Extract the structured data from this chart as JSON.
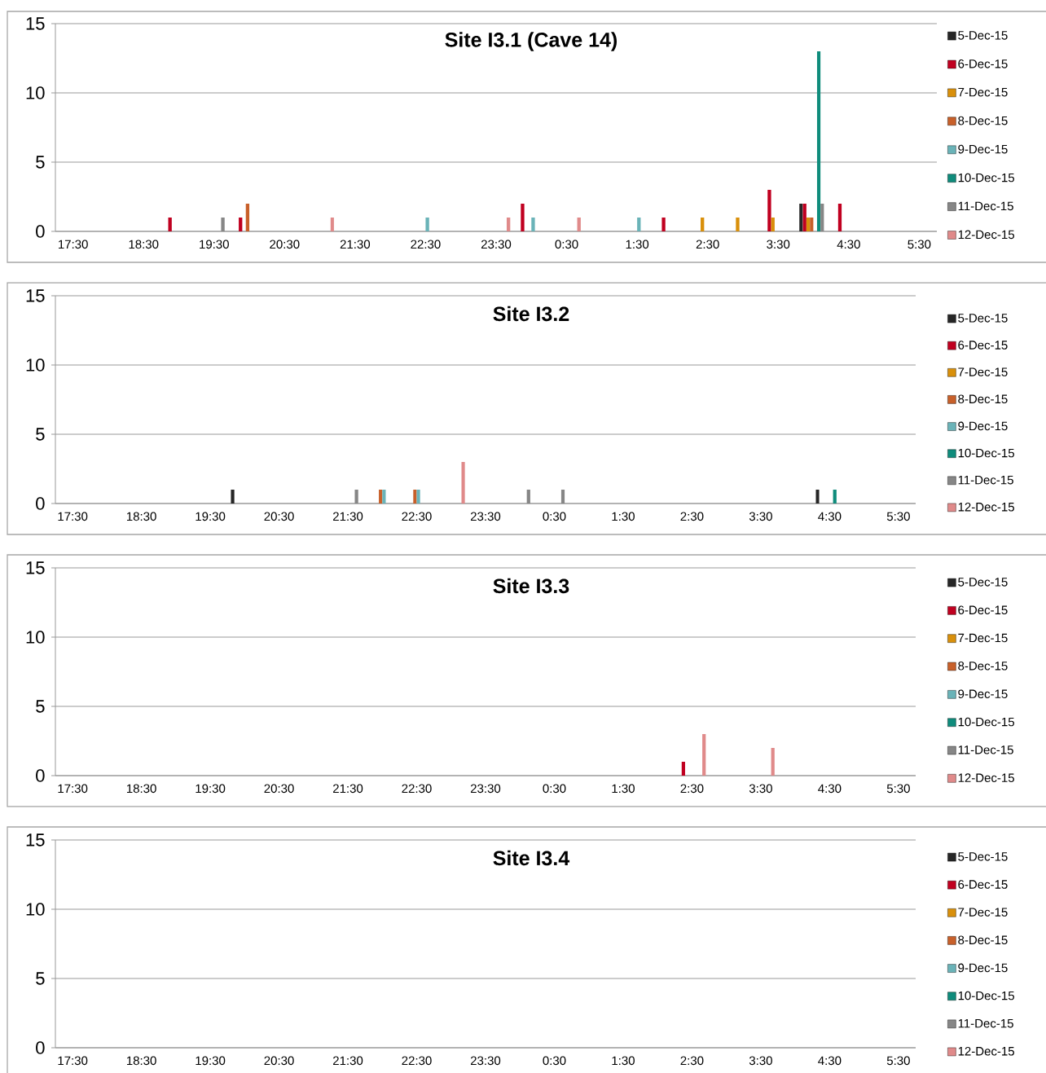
{
  "chart_data": [
    {
      "type": "bar",
      "title": "Site I3.1 (Cave 14)",
      "categories": [
        "17:30",
        null,
        "18:30",
        null,
        "19:30",
        null,
        "20:30",
        null,
        "21:30",
        null,
        "22:30",
        null,
        "23:30",
        null,
        "0:30",
        null,
        "1:30",
        null,
        "2:30",
        null,
        "3:30",
        null,
        "4:30",
        null,
        "5:30"
      ],
      "ylim": [
        0,
        15
      ],
      "yticks": [
        0,
        5,
        10,
        15
      ],
      "grid": "y",
      "legend": "right",
      "series": [
        {
          "name": "5-Dec-15",
          "color": "#262626",
          "values": [
            null,
            null,
            null,
            null,
            null,
            null,
            null,
            null,
            null,
            null,
            null,
            null,
            null,
            null,
            null,
            null,
            null,
            null,
            null,
            null,
            null,
            2,
            null,
            null,
            null
          ]
        },
        {
          "name": "6-Dec-15",
          "color": "#c00020",
          "values": [
            null,
            null,
            null,
            1,
            null,
            1,
            null,
            null,
            null,
            null,
            null,
            null,
            null,
            2,
            null,
            null,
            null,
            1,
            null,
            null,
            3,
            2,
            2,
            null,
            null
          ]
        },
        {
          "name": "7-Dec-15",
          "color": "#d9900b",
          "values": [
            null,
            null,
            null,
            null,
            null,
            null,
            null,
            null,
            null,
            null,
            null,
            null,
            null,
            null,
            null,
            null,
            null,
            null,
            1,
            1,
            1,
            1,
            null,
            null,
            null
          ]
        },
        {
          "name": "8-Dec-15",
          "color": "#c8602a",
          "values": [
            null,
            null,
            null,
            null,
            null,
            2,
            null,
            null,
            null,
            null,
            null,
            null,
            null,
            null,
            null,
            null,
            null,
            null,
            null,
            null,
            null,
            1,
            null,
            null,
            null
          ]
        },
        {
          "name": "9-Dec-15",
          "color": "#6ab3b8",
          "values": [
            null,
            null,
            null,
            null,
            null,
            null,
            null,
            null,
            null,
            null,
            1,
            null,
            null,
            1,
            null,
            null,
            1,
            null,
            null,
            null,
            null,
            null,
            null,
            null,
            null
          ]
        },
        {
          "name": "10-Dec-15",
          "color": "#0f8c7c",
          "values": [
            null,
            null,
            null,
            null,
            null,
            null,
            null,
            null,
            null,
            null,
            null,
            null,
            null,
            null,
            null,
            null,
            null,
            null,
            null,
            null,
            null,
            13,
            null,
            null,
            null
          ]
        },
        {
          "name": "11-Dec-15",
          "color": "#868686",
          "values": [
            null,
            null,
            null,
            null,
            1,
            null,
            null,
            null,
            null,
            null,
            null,
            null,
            null,
            null,
            null,
            null,
            null,
            null,
            null,
            null,
            null,
            2,
            null,
            null,
            null
          ]
        },
        {
          "name": "12-Dec-15",
          "color": "#e08a8a",
          "values": [
            null,
            null,
            null,
            null,
            null,
            null,
            null,
            1,
            null,
            null,
            null,
            null,
            1,
            null,
            1,
            null,
            null,
            null,
            null,
            null,
            null,
            null,
            null,
            null,
            null
          ]
        }
      ]
    },
    {
      "type": "bar",
      "title": "Site I3.2",
      "categories": [
        "17:30",
        null,
        "18:30",
        null,
        "19:30",
        null,
        "20:30",
        null,
        "21:30",
        null,
        "22:30",
        null,
        "23:30",
        null,
        "0:30",
        null,
        "1:30",
        null,
        "2:30",
        null,
        "3:30",
        null,
        "4:30",
        null,
        "5:30"
      ],
      "ylim": [
        0,
        15
      ],
      "yticks": [
        0,
        5,
        10,
        15
      ],
      "grid": "y",
      "legend": "right",
      "series": [
        {
          "name": "5-Dec-15",
          "color": "#262626",
          "values": [
            null,
            null,
            null,
            null,
            null,
            1,
            null,
            null,
            null,
            null,
            null,
            null,
            null,
            null,
            null,
            null,
            null,
            null,
            null,
            null,
            null,
            null,
            1,
            null,
            null
          ]
        },
        {
          "name": "6-Dec-15",
          "color": "#c00020",
          "values": [
            null,
            null,
            null,
            null,
            null,
            null,
            null,
            null,
            null,
            null,
            null,
            null,
            null,
            null,
            null,
            null,
            null,
            null,
            null,
            null,
            null,
            null,
            null,
            null,
            null
          ]
        },
        {
          "name": "7-Dec-15",
          "color": "#d9900b",
          "values": [
            null,
            null,
            null,
            null,
            null,
            null,
            null,
            null,
            null,
            null,
            null,
            null,
            null,
            null,
            null,
            null,
            null,
            null,
            null,
            null,
            null,
            null,
            null,
            null,
            null
          ]
        },
        {
          "name": "8-Dec-15",
          "color": "#c8602a",
          "values": [
            null,
            null,
            null,
            null,
            null,
            null,
            null,
            null,
            null,
            1,
            1,
            null,
            null,
            null,
            null,
            null,
            null,
            null,
            null,
            null,
            null,
            null,
            null,
            null,
            null
          ]
        },
        {
          "name": "9-Dec-15",
          "color": "#6ab3b8",
          "values": [
            null,
            null,
            null,
            null,
            null,
            null,
            null,
            null,
            null,
            1,
            1,
            null,
            null,
            null,
            null,
            null,
            null,
            null,
            null,
            null,
            null,
            null,
            null,
            null,
            null
          ]
        },
        {
          "name": "10-Dec-15",
          "color": "#0f8c7c",
          "values": [
            null,
            null,
            null,
            null,
            null,
            null,
            null,
            null,
            null,
            null,
            null,
            null,
            null,
            null,
            null,
            null,
            null,
            null,
            null,
            null,
            null,
            null,
            1,
            null,
            null
          ]
        },
        {
          "name": "11-Dec-15",
          "color": "#868686",
          "values": [
            null,
            null,
            null,
            null,
            null,
            null,
            null,
            null,
            1,
            null,
            null,
            null,
            null,
            1,
            1,
            null,
            null,
            null,
            null,
            null,
            null,
            null,
            null,
            null,
            null
          ]
        },
        {
          "name": "12-Dec-15",
          "color": "#e08a8a",
          "values": [
            null,
            null,
            null,
            null,
            null,
            null,
            null,
            null,
            null,
            null,
            null,
            3,
            null,
            null,
            null,
            null,
            null,
            null,
            null,
            null,
            null,
            null,
            null,
            null,
            null
          ]
        }
      ]
    },
    {
      "type": "bar",
      "title": "Site I3.3",
      "categories": [
        "17:30",
        null,
        "18:30",
        null,
        "19:30",
        null,
        "20:30",
        null,
        "21:30",
        null,
        "22:30",
        null,
        "23:30",
        null,
        "0:30",
        null,
        "1:30",
        null,
        "2:30",
        null,
        "3:30",
        null,
        "4:30",
        null,
        "5:30"
      ],
      "ylim": [
        0,
        15
      ],
      "yticks": [
        0,
        5,
        10,
        15
      ],
      "grid": "y",
      "legend": "right",
      "series": [
        {
          "name": "5-Dec-15",
          "color": "#262626",
          "values": [
            null,
            null,
            null,
            null,
            null,
            null,
            null,
            null,
            null,
            null,
            null,
            null,
            null,
            null,
            null,
            null,
            null,
            null,
            null,
            null,
            null,
            null,
            null,
            null,
            null
          ]
        },
        {
          "name": "6-Dec-15",
          "color": "#c00020",
          "values": [
            null,
            null,
            null,
            null,
            null,
            null,
            null,
            null,
            null,
            null,
            null,
            null,
            null,
            null,
            null,
            null,
            null,
            null,
            1,
            null,
            null,
            null,
            null,
            null,
            null
          ]
        },
        {
          "name": "7-Dec-15",
          "color": "#d9900b",
          "values": [
            null,
            null,
            null,
            null,
            null,
            null,
            null,
            null,
            null,
            null,
            null,
            null,
            null,
            null,
            null,
            null,
            null,
            null,
            null,
            null,
            null,
            null,
            null,
            null,
            null
          ]
        },
        {
          "name": "8-Dec-15",
          "color": "#c8602a",
          "values": [
            null,
            null,
            null,
            null,
            null,
            null,
            null,
            null,
            null,
            null,
            null,
            null,
            null,
            null,
            null,
            null,
            null,
            null,
            null,
            null,
            null,
            null,
            null,
            null,
            null
          ]
        },
        {
          "name": "9-Dec-15",
          "color": "#6ab3b8",
          "values": [
            null,
            null,
            null,
            null,
            null,
            null,
            null,
            null,
            null,
            null,
            null,
            null,
            null,
            null,
            null,
            null,
            null,
            null,
            null,
            null,
            null,
            null,
            null,
            null,
            null
          ]
        },
        {
          "name": "10-Dec-15",
          "color": "#0f8c7c",
          "values": [
            null,
            null,
            null,
            null,
            null,
            null,
            null,
            null,
            null,
            null,
            null,
            null,
            null,
            null,
            null,
            null,
            null,
            null,
            null,
            null,
            null,
            null,
            null,
            null,
            null
          ]
        },
        {
          "name": "11-Dec-15",
          "color": "#868686",
          "values": [
            null,
            null,
            null,
            null,
            null,
            null,
            null,
            null,
            null,
            null,
            null,
            null,
            null,
            null,
            null,
            null,
            null,
            null,
            null,
            null,
            null,
            null,
            null,
            null,
            null
          ]
        },
        {
          "name": "12-Dec-15",
          "color": "#e08a8a",
          "values": [
            null,
            null,
            null,
            null,
            null,
            null,
            null,
            null,
            null,
            null,
            null,
            null,
            null,
            null,
            null,
            null,
            null,
            null,
            3,
            null,
            2,
            null,
            null,
            null,
            null
          ]
        }
      ]
    },
    {
      "type": "bar",
      "title": "Site I3.4",
      "categories": [
        "17:30",
        null,
        "18:30",
        null,
        "19:30",
        null,
        "20:30",
        null,
        "21:30",
        null,
        "22:30",
        null,
        "23:30",
        null,
        "0:30",
        null,
        "1:30",
        null,
        "2:30",
        null,
        "3:30",
        null,
        "4:30",
        null,
        "5:30"
      ],
      "ylim": [
        0,
        15
      ],
      "yticks": [
        0,
        5,
        10,
        15
      ],
      "grid": "y",
      "legend": "right",
      "series": [
        {
          "name": "5-Dec-15",
          "color": "#262626",
          "values": [
            null,
            null,
            null,
            null,
            null,
            null,
            null,
            null,
            null,
            null,
            null,
            null,
            null,
            null,
            null,
            null,
            null,
            null,
            null,
            null,
            null,
            null,
            null,
            null,
            null
          ]
        },
        {
          "name": "6-Dec-15",
          "color": "#c00020",
          "values": [
            null,
            null,
            null,
            null,
            null,
            null,
            null,
            null,
            null,
            null,
            null,
            null,
            null,
            null,
            null,
            null,
            null,
            null,
            null,
            null,
            null,
            null,
            null,
            null,
            null
          ]
        },
        {
          "name": "7-Dec-15",
          "color": "#d9900b",
          "values": [
            null,
            null,
            null,
            null,
            null,
            null,
            null,
            null,
            null,
            null,
            null,
            null,
            null,
            null,
            null,
            null,
            null,
            null,
            null,
            null,
            null,
            null,
            null,
            null,
            null
          ]
        },
        {
          "name": "8-Dec-15",
          "color": "#c8602a",
          "values": [
            null,
            null,
            null,
            null,
            null,
            null,
            null,
            null,
            null,
            null,
            null,
            null,
            null,
            null,
            null,
            null,
            null,
            null,
            null,
            null,
            null,
            null,
            null,
            null,
            null
          ]
        },
        {
          "name": "9-Dec-15",
          "color": "#6ab3b8",
          "values": [
            null,
            null,
            null,
            null,
            null,
            null,
            null,
            null,
            null,
            null,
            null,
            null,
            null,
            null,
            null,
            null,
            null,
            null,
            null,
            null,
            null,
            null,
            null,
            null,
            null
          ]
        },
        {
          "name": "10-Dec-15",
          "color": "#0f8c7c",
          "values": [
            null,
            null,
            null,
            null,
            null,
            null,
            null,
            null,
            null,
            null,
            null,
            null,
            null,
            null,
            null,
            null,
            null,
            null,
            null,
            null,
            null,
            null,
            null,
            null,
            null
          ]
        },
        {
          "name": "11-Dec-15",
          "color": "#868686",
          "values": [
            null,
            null,
            null,
            null,
            null,
            null,
            null,
            null,
            null,
            null,
            null,
            null,
            null,
            null,
            null,
            null,
            null,
            null,
            null,
            null,
            null,
            null,
            null,
            null,
            null
          ]
        },
        {
          "name": "12-Dec-15",
          "color": "#e08a8a",
          "values": [
            null,
            null,
            null,
            null,
            null,
            null,
            null,
            null,
            null,
            null,
            null,
            null,
            null,
            null,
            null,
            null,
            null,
            null,
            null,
            null,
            null,
            null,
            null,
            null,
            null
          ]
        }
      ]
    }
  ]
}
